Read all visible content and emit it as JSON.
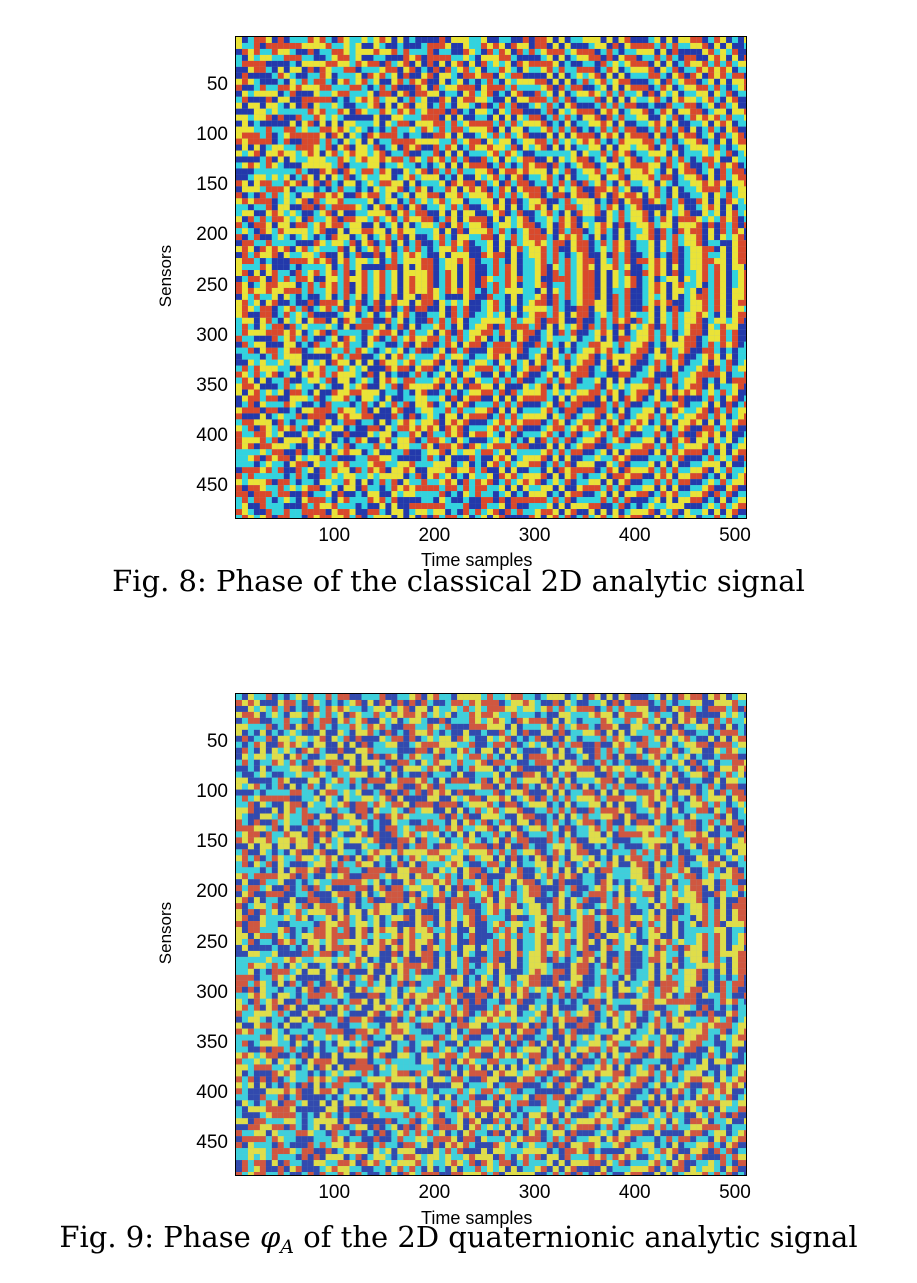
{
  "figures": [
    {
      "caption": "Fig. 8: Phase of the classical 2D analytic signal",
      "chart_data": {
        "type": "heatmap",
        "title": "",
        "xlabel": "Time samples",
        "ylabel": "Sensors",
        "xlim": [
          1,
          512
        ],
        "ylim": [
          1,
          483
        ],
        "y_reversed": true,
        "xticks": [
          100,
          200,
          300,
          400,
          500
        ],
        "yticks": [
          50,
          100,
          150,
          200,
          250,
          300,
          350,
          400,
          450
        ],
        "colormap": [
          "#1a2fa8",
          "#2ad6e0",
          "#f2e72a",
          "#e0401e"
        ],
        "grid": false
      }
    },
    {
      "caption_prefix": "Fig. 9: Phase ",
      "caption_symbol": "φ",
      "caption_subscript": "A",
      "caption_suffix": " of the 2D quaternionic analytic signal",
      "chart_data": {
        "type": "heatmap",
        "title": "",
        "xlabel": "Time samples",
        "ylabel": "Sensors",
        "xlim": [
          1,
          512
        ],
        "ylim": [
          1,
          483
        ],
        "y_reversed": true,
        "xticks": [
          100,
          200,
          300,
          400,
          500
        ],
        "yticks": [
          50,
          100,
          150,
          200,
          250,
          300,
          350,
          400,
          450
        ],
        "colormap": [
          "#1a2fa8",
          "#2ad6e0",
          "#f2e72a",
          "#e0401e"
        ],
        "grid": false
      }
    }
  ]
}
